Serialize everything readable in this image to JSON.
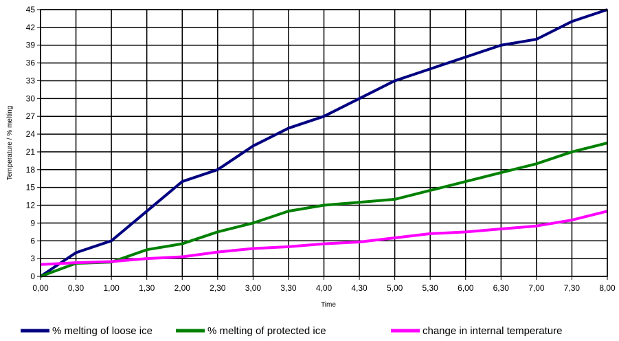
{
  "chart_data": {
    "type": "line",
    "title": "",
    "xlabel": "Time",
    "ylabel": "Temperature / % melting",
    "categories": [
      "0,00",
      "0,30",
      "1,00",
      "1,30",
      "2,00",
      "2,30",
      "3,00",
      "3,30",
      "4,00",
      "4,30",
      "5,00",
      "5,30",
      "6,00",
      "6,30",
      "7,00",
      "7,30",
      "8,00"
    ],
    "ylim": [
      0,
      45
    ],
    "yticks": [
      "0",
      "3",
      "6",
      "9",
      "12",
      "15",
      "18",
      "21",
      "24",
      "27",
      "30",
      "33",
      "36",
      "39",
      "42",
      "45"
    ],
    "grid": true,
    "legend_position": "bottom",
    "series": [
      {
        "name": "% melting of loose ice",
        "color": "#000080",
        "values": [
          0,
          4,
          6,
          11,
          16,
          18,
          22,
          25,
          27,
          30,
          33,
          35,
          37,
          39,
          40,
          43,
          45
        ]
      },
      {
        "name": "% melting of protected ice",
        "color": "#008000",
        "values": [
          0,
          2.2,
          2.4,
          4.5,
          5.5,
          7.5,
          9,
          11,
          12,
          12.5,
          13,
          14.5,
          16,
          17.5,
          19,
          21,
          22.5
        ]
      },
      {
        "name": "change in internal temperature",
        "color": "#ff00ff",
        "values": [
          2,
          2.3,
          2.5,
          3,
          3.3,
          4.1,
          4.7,
          5,
          5.5,
          5.8,
          6.5,
          7.2,
          7.5,
          8,
          8.5,
          9.5,
          11
        ]
      }
    ]
  }
}
